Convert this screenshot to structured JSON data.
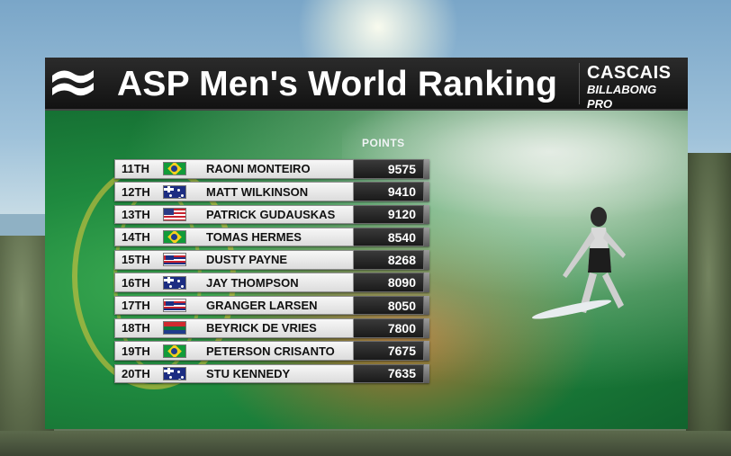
{
  "header": {
    "title": "ASP Men's World Ranking",
    "sponsor_line1": "CASCAIS",
    "sponsor_line2": "BILLABONG PRO"
  },
  "table": {
    "points_header": "POINTS",
    "rows": [
      {
        "rank": "11TH",
        "flag": "flag-br",
        "name": "RAONI MONTEIRO",
        "points": "9575"
      },
      {
        "rank": "12TH",
        "flag": "flag-au",
        "name": "MATT WILKINSON",
        "points": "9410"
      },
      {
        "rank": "13TH",
        "flag": "flag-us",
        "name": "PATRICK GUDAUSKAS",
        "points": "9120"
      },
      {
        "rank": "14TH",
        "flag": "flag-br",
        "name": "TOMAS HERMES",
        "points": "8540"
      },
      {
        "rank": "15TH",
        "flag": "flag-hi",
        "name": "DUSTY PAYNE",
        "points": "8268"
      },
      {
        "rank": "16TH",
        "flag": "flag-au",
        "name": "JAY THOMPSON",
        "points": "8090"
      },
      {
        "rank": "17TH",
        "flag": "flag-hi",
        "name": "GRANGER LARSEN",
        "points": "8050"
      },
      {
        "rank": "18TH",
        "flag": "flag-za",
        "name": "BEYRICK DE VRIES",
        "points": "7800"
      },
      {
        "rank": "19TH",
        "flag": "flag-br",
        "name": "PETERSON CRISANTO",
        "points": "7675"
      },
      {
        "rank": "20TH",
        "flag": "flag-au",
        "name": "STU KENNEDY",
        "points": "7635"
      }
    ]
  }
}
